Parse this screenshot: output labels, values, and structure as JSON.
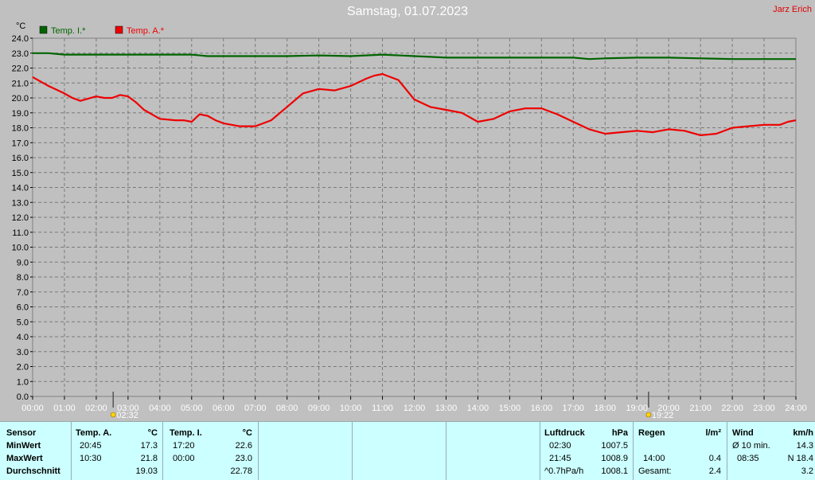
{
  "header": {
    "title": "Samstag, 01.07.2023",
    "author": "Jarz Erich",
    "unit_label": "°C"
  },
  "legend": [
    {
      "label": "Temp. I.*",
      "color": "#006400"
    },
    {
      "label": "Temp. A.*",
      "color": "#ee0000"
    }
  ],
  "markers": {
    "sunrise": "02:32",
    "sunset": "19:22"
  },
  "chart_data": {
    "type": "line",
    "title": "Samstag, 01.07.2023",
    "xlabel": "",
    "ylabel": "°C",
    "xlim": [
      0,
      24
    ],
    "ylim": [
      0,
      24
    ],
    "grid": true,
    "legend_position": "top-left",
    "x_ticks": [
      "00:00",
      "01:00",
      "02:00",
      "03:00",
      "04:00",
      "05:00",
      "06:00",
      "07:00",
      "08:00",
      "09:00",
      "10:00",
      "11:00",
      "12:00",
      "13:00",
      "14:00",
      "15:00",
      "16:00",
      "17:00",
      "18:00",
      "19:00",
      "20:00",
      "21:00",
      "22:00",
      "23:00",
      "24:00"
    ],
    "y_ticks": [
      "0.0",
      "1.0",
      "2.0",
      "3.0",
      "4.0",
      "5.0",
      "6.0",
      "7.0",
      "8.0",
      "9.0",
      "10.0",
      "11.0",
      "12.0",
      "13.0",
      "14.0",
      "15.0",
      "16.0",
      "17.0",
      "18.0",
      "19.0",
      "20.0",
      "21.0",
      "22.0",
      "23.0",
      "24.0"
    ],
    "series": [
      {
        "name": "Temp. I.*",
        "color": "#006400",
        "x": [
          0,
          0.5,
          1,
          2,
          3,
          4,
          5,
          5.5,
          6,
          7,
          8,
          9,
          10,
          11,
          12,
          12.5,
          13,
          14,
          15,
          16,
          17,
          17.5,
          18,
          19,
          20,
          21,
          22,
          23,
          24
        ],
        "y": [
          23.0,
          23.0,
          22.9,
          22.9,
          22.9,
          22.9,
          22.9,
          22.8,
          22.8,
          22.8,
          22.8,
          22.85,
          22.8,
          22.9,
          22.8,
          22.75,
          22.7,
          22.7,
          22.7,
          22.7,
          22.7,
          22.6,
          22.65,
          22.7,
          22.7,
          22.65,
          22.6,
          22.6,
          22.6
        ]
      },
      {
        "name": "Temp. A.*",
        "color": "#ee0000",
        "x": [
          0,
          0.25,
          0.5,
          1,
          1.25,
          1.5,
          2,
          2.25,
          2.5,
          2.75,
          3,
          3.25,
          3.5,
          3.75,
          4,
          4.5,
          4.75,
          5,
          5.25,
          5.5,
          5.75,
          6,
          6.5,
          7,
          7.5,
          8,
          8.5,
          9,
          9.5,
          10,
          10.5,
          10.75,
          11,
          11.5,
          12,
          12.5,
          13,
          13.5,
          14,
          14.5,
          15,
          15.5,
          16,
          16.5,
          17,
          17.5,
          18,
          18.5,
          19,
          19.5,
          20,
          20.5,
          21,
          21.5,
          22,
          22.5,
          23,
          23.5,
          23.75,
          24
        ],
        "y": [
          21.4,
          21.1,
          20.8,
          20.3,
          20.0,
          19.8,
          20.1,
          20.0,
          20.0,
          20.2,
          20.1,
          19.7,
          19.2,
          18.9,
          18.6,
          18.5,
          18.5,
          18.4,
          18.9,
          18.8,
          18.5,
          18.3,
          18.1,
          18.1,
          18.5,
          19.4,
          20.3,
          20.6,
          20.5,
          20.8,
          21.3,
          21.5,
          21.6,
          21.2,
          19.9,
          19.4,
          19.2,
          19.0,
          18.4,
          18.6,
          19.1,
          19.3,
          19.3,
          18.9,
          18.4,
          17.9,
          17.6,
          17.7,
          17.8,
          17.7,
          17.9,
          17.8,
          17.5,
          17.6,
          18.0,
          18.1,
          18.2,
          18.2,
          18.4,
          18.5
        ]
      }
    ]
  },
  "stats": {
    "sensor": {
      "label": "Sensor",
      "min": "MinWert",
      "max": "MaxWert",
      "avg": "Durchschnitt"
    },
    "temp_a": {
      "title": "Temp. A.",
      "unit": "°C",
      "min_time": "20:45",
      "min_val": "17.3",
      "max_time": "10:30",
      "max_val": "21.8",
      "avg": "19.03"
    },
    "temp_i": {
      "title": "Temp. I.",
      "unit": "°C",
      "min_time": "17:20",
      "min_val": "22.6",
      "max_time": "00:00",
      "max_val": "23.0",
      "avg": "22.78"
    },
    "pressure": {
      "title": "Luftdruck",
      "unit": "hPa",
      "r1_time": "02:30",
      "r1_val": "1007.5",
      "r2_time": "21:45",
      "r2_val": "1008.9",
      "r3_label": "^0.7hPa/h",
      "r3_val": "1008.1"
    },
    "rain": {
      "title": "Regen",
      "unit": "l/m²",
      "r2_time": "14:00",
      "r2_val": "0.4",
      "total_label": "Gesamt:",
      "total_val": "2.4"
    },
    "wind": {
      "title": "Wind",
      "unit": "km/h",
      "r1_label": "Ø 10 min.",
      "r1_val": "14.3",
      "r2_time": "08:35",
      "r2_val": "N 18.4",
      "r3_val": "3.2"
    }
  }
}
